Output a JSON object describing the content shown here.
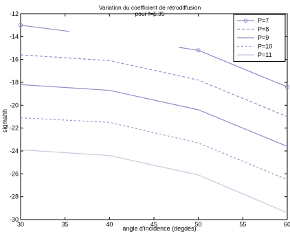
{
  "chart_data": {
    "type": "line",
    "title": "Variation du coefficient de rétrodiffusion",
    "subtitle": "pour f=5.35",
    "xlabel": "angle d'incidence (degdés)",
    "ylabel": "sigmahh",
    "xlim": [
      30,
      60
    ],
    "ylim": [
      -30,
      -12
    ],
    "xticks": [
      30,
      35,
      40,
      45,
      50,
      55,
      60
    ],
    "yticks": [
      -30,
      -28,
      -26,
      -24,
      -22,
      -20,
      -18,
      -16,
      -14,
      -12
    ],
    "grid": false,
    "legend_position": "top-right",
    "series": [
      {
        "name": "P=7",
        "x": [
          30,
          40,
          50,
          60
        ],
        "y": [
          -13.0,
          -14.0,
          -15.2,
          -18.4
        ],
        "color": "#8c8cc8",
        "dash": "",
        "marker": "circle"
      },
      {
        "name": "P=8",
        "x": [
          30,
          40,
          50,
          60
        ],
        "y": [
          -15.6,
          -16.1,
          -17.8,
          -21.0
        ],
        "color": "#8c8cc8",
        "dash": "4,3",
        "marker": ""
      },
      {
        "name": "P=9",
        "x": [
          30,
          40,
          50,
          60
        ],
        "y": [
          -18.2,
          -18.7,
          -20.4,
          -23.6
        ],
        "color": "#8c8cc8",
        "dash": "",
        "marker": ""
      },
      {
        "name": "P=10",
        "x": [
          30,
          40,
          50,
          60
        ],
        "y": [
          -21.1,
          -21.5,
          -23.3,
          -26.5
        ],
        "color": "#9a9ac8",
        "dash": "3,3",
        "marker": ""
      },
      {
        "name": "P=11",
        "x": [
          30,
          40,
          50,
          60
        ],
        "y": [
          -23.9,
          -24.4,
          -26.1,
          -29.4
        ],
        "color": "#c8c8dc",
        "dash": "",
        "marker": ""
      }
    ]
  }
}
